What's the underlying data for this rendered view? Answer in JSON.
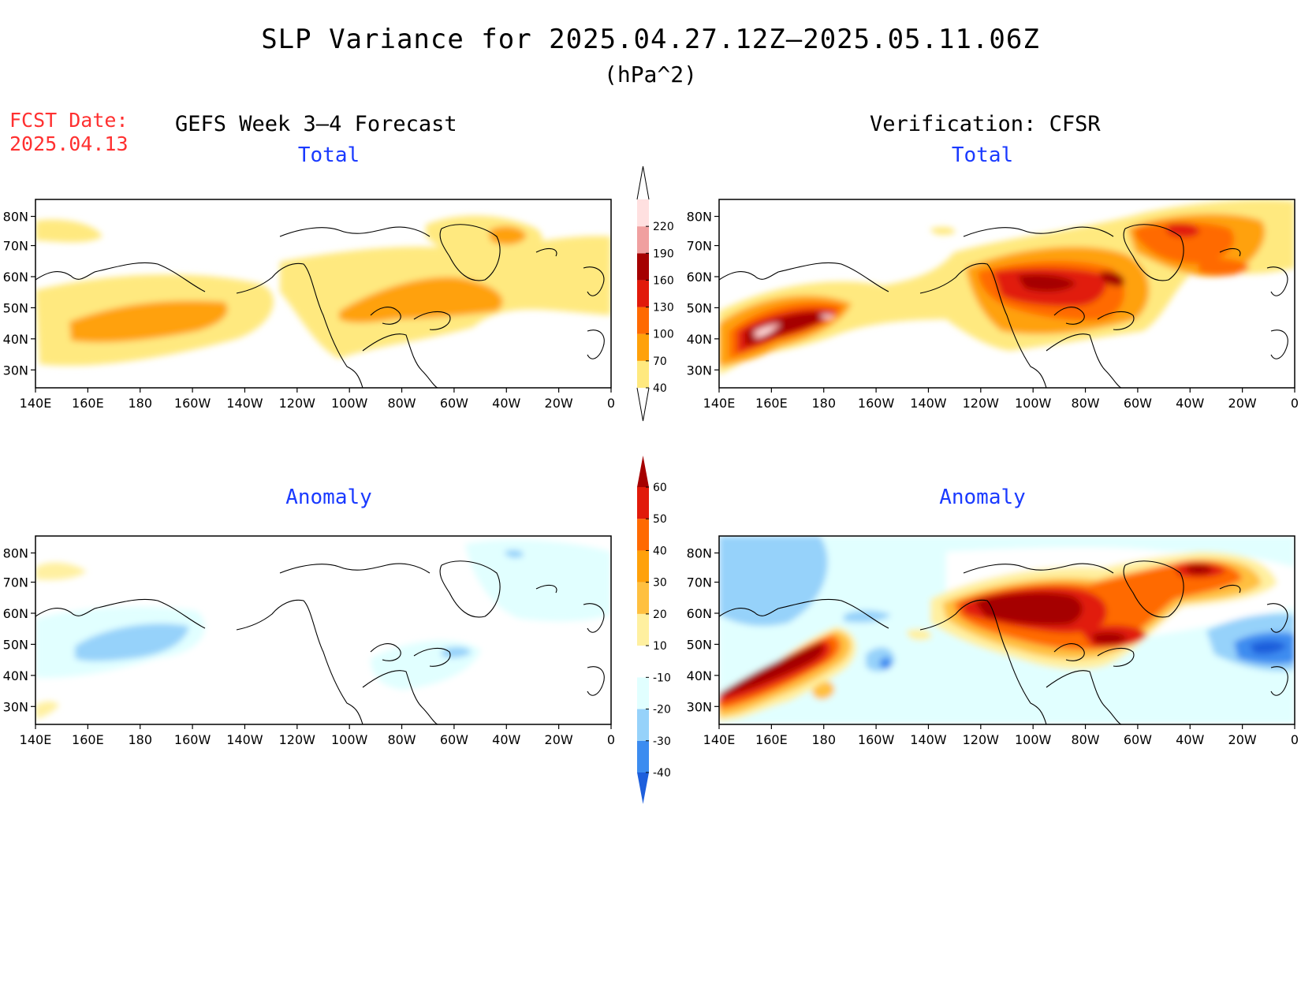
{
  "title": "SLP Variance for 2025.04.27.12Z–2025.05.11.06Z",
  "units": "(hPa^2)",
  "fcst_date_label": "FCST Date:",
  "fcst_date_value": "2025.04.13",
  "forecast_title": "GEFS Week 3–4 Forecast",
  "verification_title": "Verification: CFSR",
  "panel_total_label": "Total",
  "panel_anomaly_label": "Anomaly",
  "lat_ticks": [
    "80N",
    "70N",
    "60N",
    "50N",
    "40N",
    "30N"
  ],
  "lon_ticks": [
    "140E",
    "160E",
    "180",
    "160W",
    "140W",
    "120W",
    "100W",
    "80W",
    "60W",
    "40W",
    "20W",
    "0"
  ],
  "total_colorbar": {
    "levels": [
      "40",
      "70",
      "100",
      "130",
      "160",
      "190",
      "220"
    ],
    "colors": [
      "#ffe97f",
      "#ffa10a",
      "#ff6a00",
      "#e11a0a",
      "#a50000",
      "#f0a0a0",
      "#ffe0e0"
    ]
  },
  "anomaly_colorbar": {
    "levels": [
      "-40",
      "-30",
      "-20",
      "-10",
      "10",
      "20",
      "30",
      "40",
      "50",
      "60"
    ],
    "colors": [
      "#1e5fdc",
      "#3c8cf0",
      "#96d2fa",
      "#e1ffff",
      "#ffffff",
      "#fff0a0",
      "#ffc040",
      "#ffa10a",
      "#ff6a00",
      "#e11a0a",
      "#a50000"
    ]
  }
}
